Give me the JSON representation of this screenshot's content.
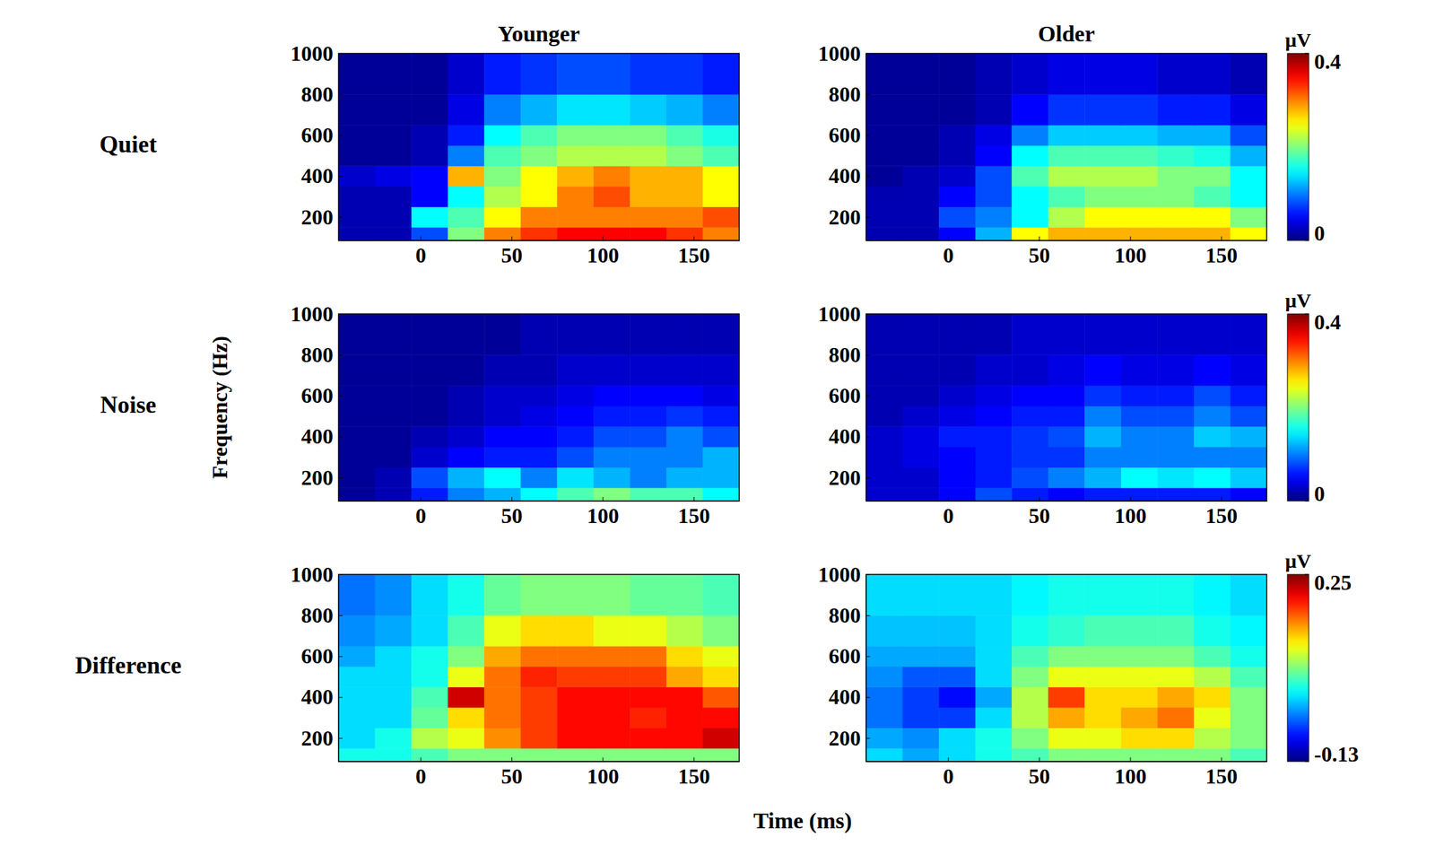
{
  "figure": {
    "xlabel": "Time (ms)",
    "ylabel": "Frequency (Hz)"
  },
  "chart_data": [
    {
      "type": "heatmap",
      "title": "Younger",
      "row_label": "Quiet",
      "x_edges": [
        -45,
        -25,
        -5,
        15,
        35,
        55,
        75,
        95,
        115,
        135,
        155,
        175
      ],
      "y_edges": [
        85,
        150,
        250,
        350,
        450,
        550,
        650,
        800,
        1000
      ],
      "z": [
        [
          0.02,
          0.02,
          0.08,
          0.2,
          0.3,
          0.33,
          0.35,
          0.35,
          0.35,
          0.33,
          0.3
        ],
        [
          0.02,
          0.02,
          0.15,
          0.18,
          0.25,
          0.3,
          0.3,
          0.3,
          0.3,
          0.3,
          0.32
        ],
        [
          0.02,
          0.02,
          0.05,
          0.15,
          0.22,
          0.25,
          0.3,
          0.32,
          0.28,
          0.28,
          0.25
        ],
        [
          0.03,
          0.04,
          0.05,
          0.28,
          0.2,
          0.25,
          0.28,
          0.3,
          0.28,
          0.28,
          0.25
        ],
        [
          0.01,
          0.01,
          0.02,
          0.1,
          0.18,
          0.2,
          0.22,
          0.22,
          0.22,
          0.2,
          0.18
        ],
        [
          0.01,
          0.01,
          0.02,
          0.06,
          0.15,
          0.18,
          0.2,
          0.2,
          0.2,
          0.18,
          0.16
        ],
        [
          0.01,
          0.01,
          0.01,
          0.04,
          0.1,
          0.12,
          0.14,
          0.14,
          0.13,
          0.12,
          0.1
        ],
        [
          0.01,
          0.01,
          0.01,
          0.03,
          0.06,
          0.07,
          0.08,
          0.08,
          0.07,
          0.07,
          0.06
        ]
      ],
      "xlim": [
        -45,
        175
      ],
      "xticks": [
        0,
        50,
        100,
        150
      ],
      "ylim": [
        85,
        1000
      ],
      "yticks": [
        200,
        400,
        600,
        800,
        1000
      ],
      "color_range": [
        0,
        0.4
      ]
    },
    {
      "type": "heatmap",
      "title": "Older",
      "x_edges": [
        -45,
        -25,
        -5,
        15,
        35,
        55,
        75,
        95,
        115,
        135,
        155,
        175
      ],
      "y_edges": [
        85,
        150,
        250,
        350,
        450,
        550,
        650,
        800,
        1000
      ],
      "z": [
        [
          0.02,
          0.02,
          0.05,
          0.12,
          0.25,
          0.28,
          0.28,
          0.28,
          0.28,
          0.28,
          0.25
        ],
        [
          0.02,
          0.02,
          0.08,
          0.1,
          0.15,
          0.22,
          0.25,
          0.25,
          0.25,
          0.25,
          0.2
        ],
        [
          0.02,
          0.02,
          0.05,
          0.08,
          0.15,
          0.18,
          0.2,
          0.2,
          0.2,
          0.18,
          0.15
        ],
        [
          0.01,
          0.02,
          0.03,
          0.08,
          0.18,
          0.22,
          0.22,
          0.22,
          0.2,
          0.2,
          0.15
        ],
        [
          0.01,
          0.01,
          0.02,
          0.05,
          0.15,
          0.18,
          0.18,
          0.18,
          0.17,
          0.16,
          0.12
        ],
        [
          0.01,
          0.01,
          0.02,
          0.04,
          0.1,
          0.13,
          0.13,
          0.13,
          0.12,
          0.12,
          0.08
        ],
        [
          0.01,
          0.01,
          0.01,
          0.02,
          0.05,
          0.07,
          0.07,
          0.07,
          0.06,
          0.06,
          0.04
        ],
        [
          0.01,
          0.01,
          0.01,
          0.02,
          0.03,
          0.04,
          0.04,
          0.04,
          0.03,
          0.03,
          0.02
        ]
      ],
      "xlim": [
        -45,
        175
      ],
      "xticks": [
        0,
        50,
        100,
        150
      ],
      "ylim": [
        85,
        1000
      ],
      "yticks": [
        200,
        400,
        600,
        800,
        1000
      ],
      "color_range": [
        0,
        0.4
      ],
      "color_ticks": [
        0,
        0.4
      ],
      "colorbar_label": "µV"
    },
    {
      "type": "heatmap",
      "row_label": "Noise",
      "x_edges": [
        -45,
        -25,
        -5,
        15,
        35,
        55,
        75,
        95,
        115,
        135,
        155,
        175
      ],
      "y_edges": [
        85,
        150,
        250,
        350,
        450,
        550,
        650,
        800,
        1000
      ],
      "z": [
        [
          0.01,
          0.02,
          0.06,
          0.1,
          0.12,
          0.15,
          0.18,
          0.2,
          0.18,
          0.18,
          0.15
        ],
        [
          0.01,
          0.02,
          0.08,
          0.12,
          0.15,
          0.1,
          0.14,
          0.12,
          0.1,
          0.12,
          0.12
        ],
        [
          0.01,
          0.01,
          0.03,
          0.05,
          0.06,
          0.06,
          0.08,
          0.1,
          0.1,
          0.1,
          0.12
        ],
        [
          0.01,
          0.01,
          0.02,
          0.03,
          0.05,
          0.05,
          0.06,
          0.08,
          0.08,
          0.1,
          0.08
        ],
        [
          0.01,
          0.01,
          0.01,
          0.02,
          0.03,
          0.04,
          0.05,
          0.06,
          0.06,
          0.07,
          0.06
        ],
        [
          0.01,
          0.01,
          0.01,
          0.02,
          0.03,
          0.03,
          0.04,
          0.05,
          0.05,
          0.05,
          0.04
        ],
        [
          0.01,
          0.01,
          0.01,
          0.01,
          0.02,
          0.02,
          0.03,
          0.03,
          0.03,
          0.03,
          0.03
        ],
        [
          0.01,
          0.01,
          0.01,
          0.01,
          0.01,
          0.02,
          0.02,
          0.02,
          0.02,
          0.02,
          0.02
        ]
      ],
      "xlim": [
        -45,
        175
      ],
      "xticks": [
        0,
        50,
        100,
        150
      ],
      "ylim": [
        85,
        1000
      ],
      "yticks": [
        200,
        400,
        600,
        800,
        1000
      ],
      "color_range": [
        0,
        0.4
      ]
    },
    {
      "type": "heatmap",
      "x_edges": [
        -45,
        -25,
        -5,
        15,
        35,
        55,
        75,
        95,
        115,
        135,
        155,
        175
      ],
      "y_edges": [
        85,
        150,
        250,
        350,
        450,
        550,
        650,
        800,
        1000
      ],
      "z": [
        [
          0.03,
          0.03,
          0.05,
          0.08,
          0.06,
          0.05,
          0.06,
          0.06,
          0.06,
          0.06,
          0.05
        ],
        [
          0.03,
          0.03,
          0.05,
          0.06,
          0.08,
          0.1,
          0.12,
          0.15,
          0.14,
          0.15,
          0.13
        ],
        [
          0.03,
          0.04,
          0.05,
          0.06,
          0.07,
          0.07,
          0.1,
          0.1,
          0.1,
          0.1,
          0.1
        ],
        [
          0.03,
          0.04,
          0.06,
          0.06,
          0.07,
          0.08,
          0.12,
          0.1,
          0.1,
          0.13,
          0.12
        ],
        [
          0.02,
          0.03,
          0.04,
          0.05,
          0.06,
          0.06,
          0.1,
          0.08,
          0.08,
          0.1,
          0.08
        ],
        [
          0.02,
          0.02,
          0.03,
          0.04,
          0.05,
          0.05,
          0.07,
          0.06,
          0.06,
          0.08,
          0.06
        ],
        [
          0.02,
          0.02,
          0.02,
          0.03,
          0.03,
          0.04,
          0.05,
          0.04,
          0.04,
          0.05,
          0.04
        ],
        [
          0.02,
          0.02,
          0.02,
          0.02,
          0.03,
          0.03,
          0.03,
          0.03,
          0.03,
          0.03,
          0.03
        ]
      ],
      "xlim": [
        -45,
        175
      ],
      "xticks": [
        0,
        50,
        100,
        150
      ],
      "ylim": [
        85,
        1000
      ],
      "yticks": [
        200,
        400,
        600,
        800,
        1000
      ],
      "color_range": [
        0,
        0.4
      ],
      "color_ticks": [
        0,
        0.4
      ],
      "colorbar_label": "µV"
    },
    {
      "type": "heatmap",
      "row_label": "Difference",
      "x_edges": [
        -45,
        -25,
        -5,
        15,
        35,
        55,
        75,
        95,
        115,
        135,
        155,
        175
      ],
      "y_edges": [
        85,
        150,
        250,
        350,
        450,
        550,
        650,
        800,
        1000
      ],
      "z": [
        [
          0.02,
          0.02,
          0.04,
          0.06,
          0.06,
          0.06,
          0.06,
          0.06,
          0.06,
          0.06,
          0.06
        ],
        [
          0.0,
          0.02,
          0.08,
          0.1,
          0.15,
          0.18,
          0.2,
          0.2,
          0.2,
          0.2,
          0.22
        ],
        [
          0.0,
          0.0,
          0.05,
          0.12,
          0.16,
          0.18,
          0.2,
          0.2,
          0.19,
          0.2,
          0.2
        ],
        [
          0.0,
          0.0,
          0.04,
          0.22,
          0.16,
          0.18,
          0.2,
          0.2,
          0.2,
          0.2,
          0.17
        ],
        [
          0.0,
          0.0,
          0.02,
          0.1,
          0.16,
          0.19,
          0.18,
          0.18,
          0.18,
          0.14,
          0.12
        ],
        [
          -0.02,
          0.0,
          0.02,
          0.06,
          0.14,
          0.16,
          0.16,
          0.16,
          0.16,
          0.12,
          0.1
        ],
        [
          -0.03,
          -0.02,
          0.0,
          0.04,
          0.1,
          0.12,
          0.12,
          0.1,
          0.1,
          0.08,
          0.06
        ],
        [
          -0.04,
          -0.03,
          0.0,
          0.02,
          0.05,
          0.06,
          0.06,
          0.06,
          0.05,
          0.05,
          0.04
        ]
      ],
      "xlim": [
        -45,
        175
      ],
      "xticks": [
        0,
        50,
        100,
        150
      ],
      "ylim": [
        85,
        1000
      ],
      "yticks": [
        200,
        400,
        600,
        800,
        1000
      ],
      "color_range": [
        -0.13,
        0.25
      ]
    },
    {
      "type": "heatmap",
      "x_edges": [
        -45,
        -25,
        -5,
        15,
        35,
        55,
        75,
        95,
        115,
        135,
        155,
        175
      ],
      "y_edges": [
        85,
        150,
        250,
        350,
        450,
        550,
        650,
        800,
        1000
      ],
      "z": [
        [
          0.0,
          -0.02,
          0.0,
          0.02,
          0.04,
          0.06,
          0.06,
          0.06,
          0.06,
          0.06,
          0.04
        ],
        [
          -0.02,
          -0.03,
          0.0,
          0.02,
          0.06,
          0.1,
          0.1,
          0.12,
          0.12,
          0.08,
          0.06
        ],
        [
          -0.04,
          -0.06,
          -0.06,
          0.0,
          0.08,
          0.14,
          0.12,
          0.14,
          0.16,
          0.1,
          0.06
        ],
        [
          -0.04,
          -0.06,
          -0.08,
          -0.02,
          0.08,
          0.18,
          0.12,
          0.12,
          0.14,
          0.12,
          0.06
        ],
        [
          -0.03,
          -0.05,
          -0.05,
          0.0,
          0.06,
          0.1,
          0.1,
          0.1,
          0.1,
          0.08,
          0.04
        ],
        [
          -0.02,
          -0.02,
          -0.02,
          0.0,
          0.04,
          0.06,
          0.06,
          0.06,
          0.06,
          0.04,
          0.02
        ],
        [
          -0.01,
          -0.01,
          -0.01,
          0.0,
          0.02,
          0.03,
          0.04,
          0.04,
          0.04,
          0.02,
          0.01
        ],
        [
          0.0,
          0.0,
          0.0,
          0.0,
          0.01,
          0.02,
          0.02,
          0.02,
          0.02,
          0.01,
          0.0
        ]
      ],
      "xlim": [
        -45,
        175
      ],
      "xticks": [
        0,
        50,
        100,
        150
      ],
      "ylim": [
        85,
        1000
      ],
      "yticks": [
        200,
        400,
        600,
        800,
        1000
      ],
      "color_range": [
        -0.13,
        0.25
      ],
      "color_ticks": [
        -0.13,
        0.25
      ],
      "colorbar_label": "µV"
    }
  ]
}
